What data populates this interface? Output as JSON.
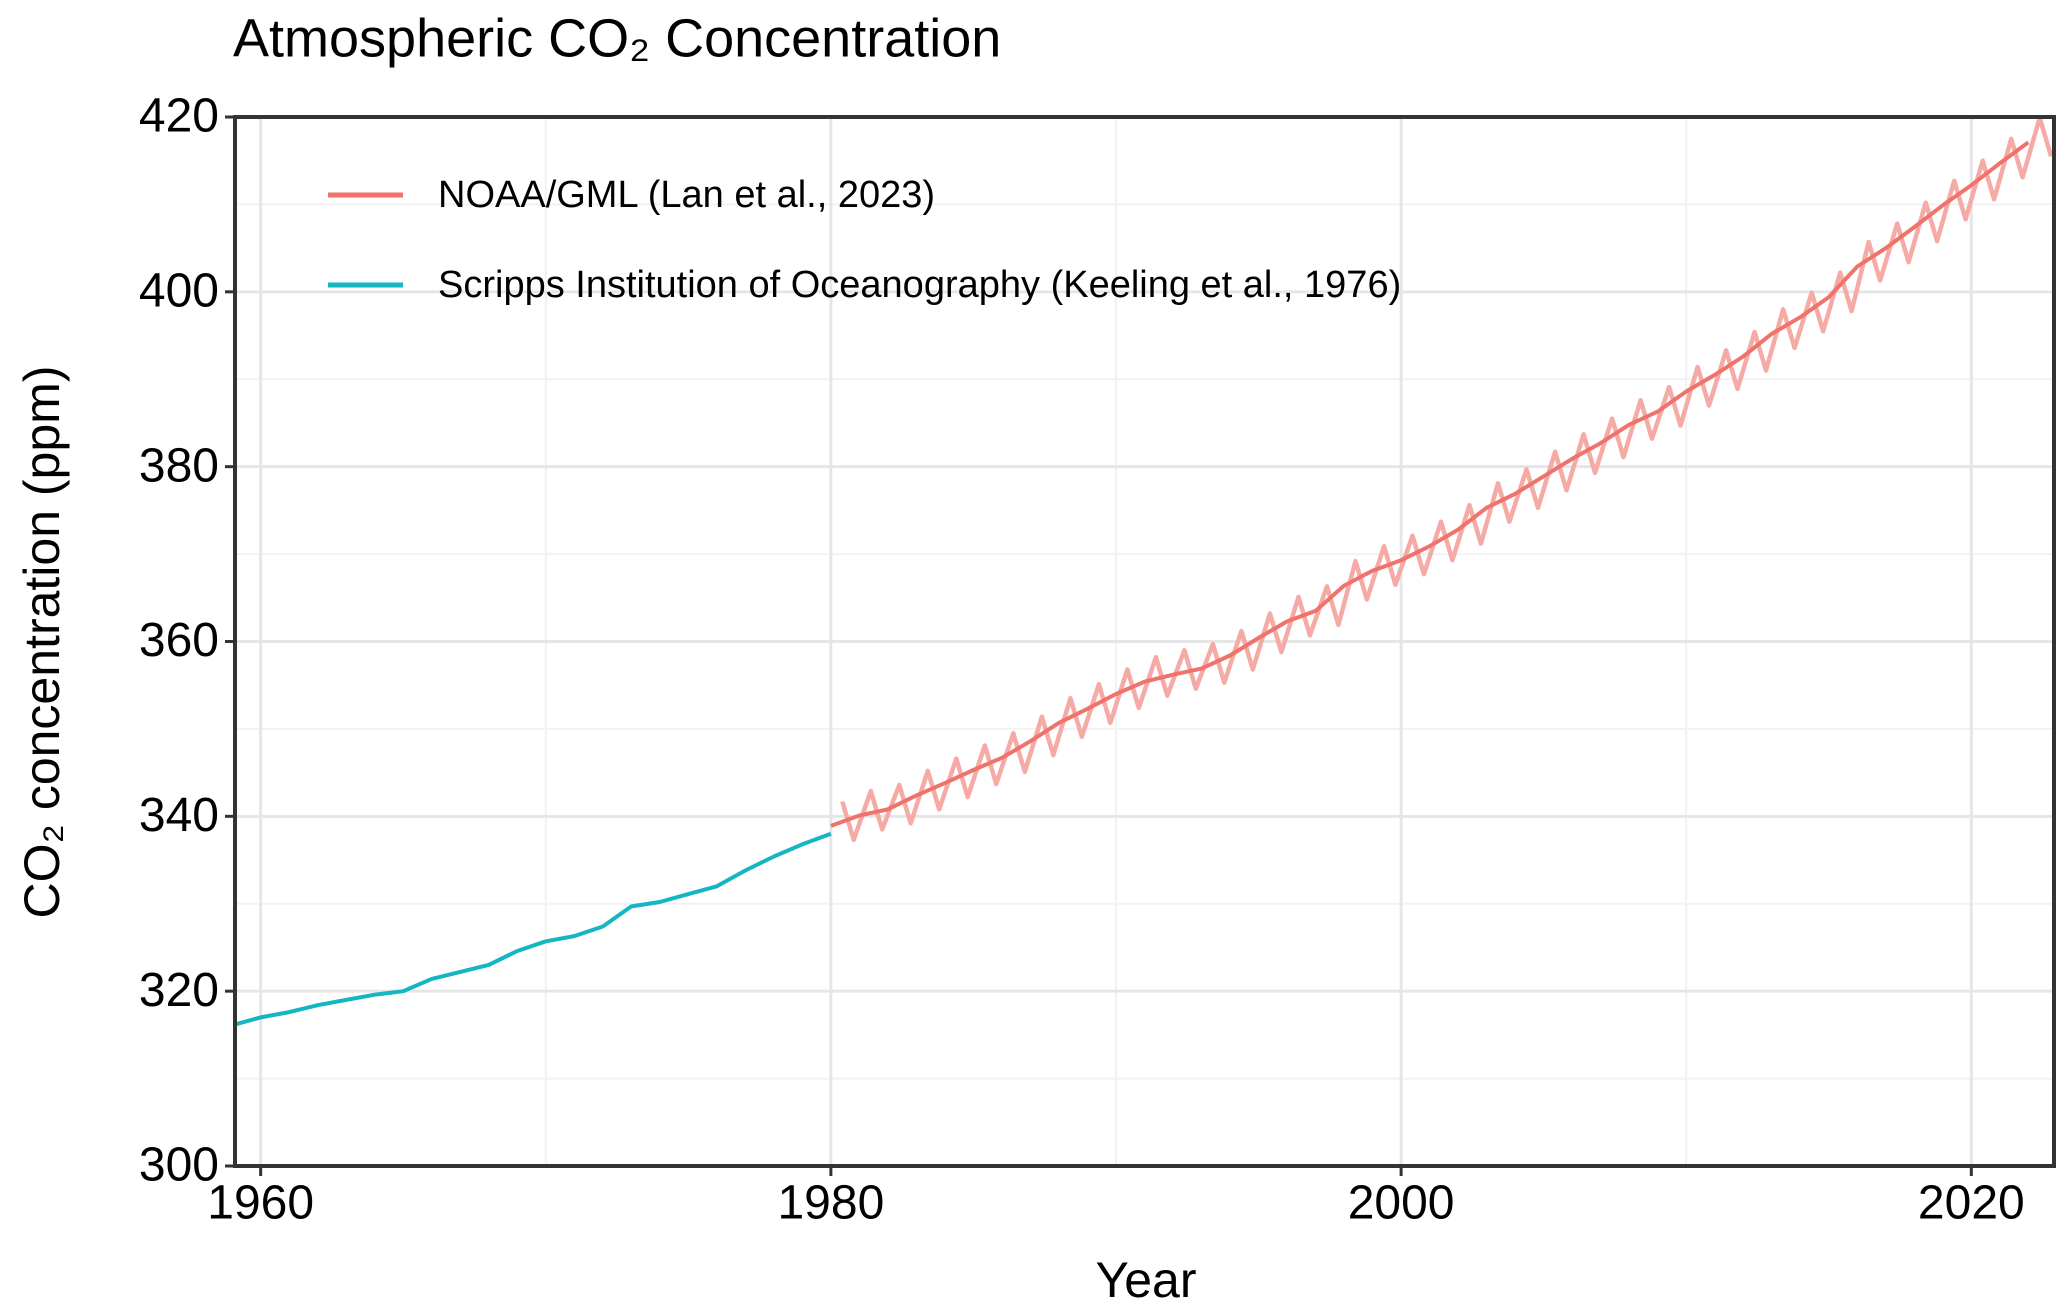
{
  "chart_data": {
    "type": "line",
    "title": "Atmospheric CO₂ Concentration",
    "x_label": "Year",
    "y_label": "CO₂ concentration (ppm)",
    "xlim": [
      1959.1,
      2022.9
    ],
    "xticks": [
      1960,
      1980,
      2000,
      2020
    ],
    "x_minor_ticks": [
      1970,
      1990,
      2010
    ],
    "ylim": [
      300,
      420
    ],
    "yticks": [
      300,
      320,
      340,
      360,
      380,
      400,
      420
    ],
    "y_minor_ticks": [
      310,
      330,
      350,
      370,
      390,
      410
    ],
    "grid": true,
    "legend": "top-left",
    "series": [
      {
        "color": "#f6aaa5",
        "x": [
          1980.4,
          1980.8,
          1981.4,
          1981.8,
          1982.4,
          1982.8,
          1983.4,
          1983.8,
          1984.4,
          1984.8,
          1985.4,
          1985.8,
          1986.4,
          1986.8,
          1987.4,
          1987.8,
          1988.4,
          1988.8,
          1989.4,
          1989.8,
          1990.4,
          1990.8,
          1991.4,
          1991.8,
          1992.4,
          1992.8,
          1993.4,
          1993.8,
          1994.4,
          1994.8,
          1995.4,
          1995.8,
          1996.4,
          1996.8,
          1997.4,
          1997.8,
          1998.4,
          1998.8,
          1999.4,
          1999.8,
          2000.4,
          2000.8,
          2001.4,
          2001.8,
          2002.4,
          2002.8,
          2003.4,
          2003.8,
          2004.4,
          2004.8,
          2005.4,
          2005.8,
          2006.4,
          2006.8,
          2007.4,
          2007.8,
          2008.4,
          2008.8,
          2009.4,
          2009.8,
          2010.4,
          2010.8,
          2011.4,
          2011.8,
          2012.4,
          2012.8,
          2013.4,
          2013.8,
          2014.4,
          2014.8,
          2015.4,
          2015.8,
          2016.4,
          2016.8,
          2017.4,
          2017.8,
          2018.4,
          2018.8,
          2019.4,
          2019.8,
          2020.4,
          2020.8,
          2021.4,
          2021.8,
          2022.4,
          2022.8
        ],
        "values": [
          341.7,
          337.3,
          342.9,
          338.5,
          343.6,
          339.2,
          345.2,
          340.8,
          346.6,
          342.2,
          348.1,
          343.7,
          349.5,
          345.1,
          351.4,
          347.0,
          353.5,
          349.1,
          355.1,
          350.7,
          356.8,
          352.4,
          358.2,
          353.8,
          359.0,
          354.6,
          359.7,
          355.3,
          361.2,
          356.8,
          363.2,
          358.8,
          365.1,
          360.7,
          366.3,
          361.9,
          369.2,
          364.8,
          370.9,
          366.5,
          372.1,
          367.7,
          373.7,
          369.3,
          375.6,
          371.2,
          378.1,
          373.7,
          379.7,
          375.3,
          381.7,
          377.3,
          383.7,
          379.3,
          385.5,
          381.1,
          387.6,
          383.2,
          389.1,
          384.7,
          391.4,
          387.0,
          393.3,
          388.9,
          395.4,
          391.0,
          398.0,
          393.6,
          399.9,
          395.5,
          402.2,
          397.8,
          405.7,
          401.3,
          407.8,
          403.4,
          410.2,
          405.8,
          412.7,
          408.3,
          415.0,
          410.6,
          417.5,
          413.1,
          419.9,
          415.5
        ]
      },
      {
        "name": "NOAA/GML (Lan et al., 2023)",
        "color": "#f0736b",
        "x": [
          1980,
          1981,
          1982,
          1983,
          1984,
          1985,
          1986,
          1987,
          1988,
          1989,
          1990,
          1991,
          1992,
          1993,
          1994,
          1995,
          1996,
          1997,
          1998,
          1999,
          2000,
          2001,
          2002,
          2003,
          2004,
          2005,
          2006,
          2007,
          2008,
          2009,
          2010,
          2011,
          2012,
          2013,
          2014,
          2015,
          2016,
          2017,
          2018,
          2019,
          2020,
          2021,
          2022
        ],
        "values": [
          338.9,
          340.1,
          340.8,
          342.4,
          343.8,
          345.3,
          346.7,
          348.6,
          350.7,
          352.3,
          354.0,
          355.4,
          356.2,
          356.9,
          358.4,
          360.4,
          362.3,
          363.5,
          366.4,
          368.1,
          369.3,
          370.9,
          372.8,
          375.3,
          376.9,
          378.9,
          380.9,
          382.7,
          384.8,
          386.3,
          388.6,
          390.5,
          392.6,
          395.2,
          397.1,
          399.4,
          402.9,
          405.0,
          407.4,
          409.9,
          412.2,
          414.7,
          417.1
        ]
      },
      {
        "name": "Scripps Institution of Oceanography (Keeling et al., 1976)",
        "color": "#13b6c1",
        "x": [
          1959.1,
          1960,
          1961,
          1962,
          1963,
          1964,
          1965,
          1966,
          1967,
          1968,
          1969,
          1970,
          1971,
          1972,
          1973,
          1974,
          1975,
          1976,
          1977,
          1978,
          1979,
          1980
        ],
        "values": [
          316.2,
          317.0,
          317.6,
          318.4,
          319.0,
          319.6,
          320.0,
          321.4,
          322.2,
          323.0,
          324.6,
          325.7,
          326.3,
          327.4,
          329.7,
          330.2,
          331.1,
          332.0,
          333.8,
          335.4,
          336.8,
          338.0
        ]
      }
    ]
  }
}
